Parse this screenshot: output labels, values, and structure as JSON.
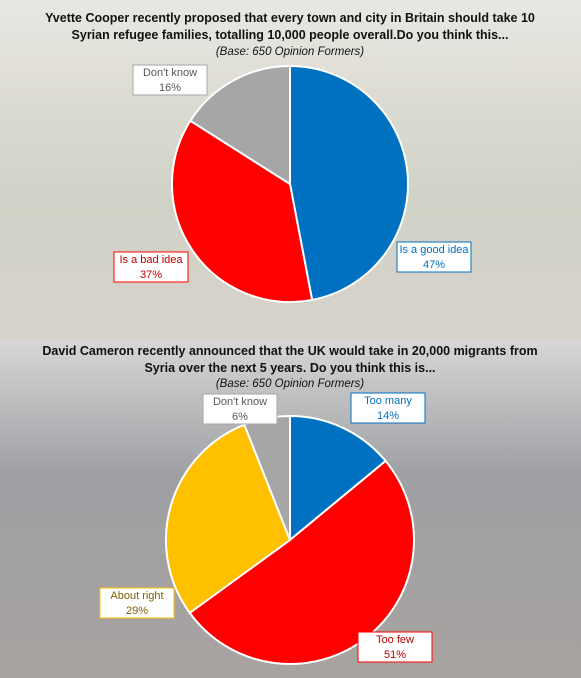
{
  "chart_data": [
    {
      "type": "pie",
      "title": "Yvette Cooper recently proposed that every town and city in Britain should take 10 Syrian refugee families, totalling 10,000 people overall.Do you think this...",
      "subtitle": "(Base: 650 Opinion Formers)",
      "categories": [
        "Is a good idea",
        "Is a bad idea",
        "Don't know"
      ],
      "values": [
        47,
        37,
        16
      ],
      "value_labels": [
        "47%",
        "37%",
        "16%"
      ],
      "colors": [
        "#0070c0",
        "#ff0000",
        "#a6a6a6"
      ]
    },
    {
      "type": "pie",
      "title": "David Cameron recently announced that the UK would take in 20,000 migrants from Syria over the next 5 years. Do you think this is...",
      "subtitle": "(Base: 650 Opinion Formers)",
      "categories": [
        "Too many",
        "Too few",
        "About right",
        "Don't know"
      ],
      "values": [
        14,
        51,
        29,
        6
      ],
      "value_labels": [
        "14%",
        "51%",
        "29%",
        "6%"
      ],
      "colors": [
        "#0070c0",
        "#ff0000",
        "#ffc000",
        "#a6a6a6"
      ]
    }
  ]
}
